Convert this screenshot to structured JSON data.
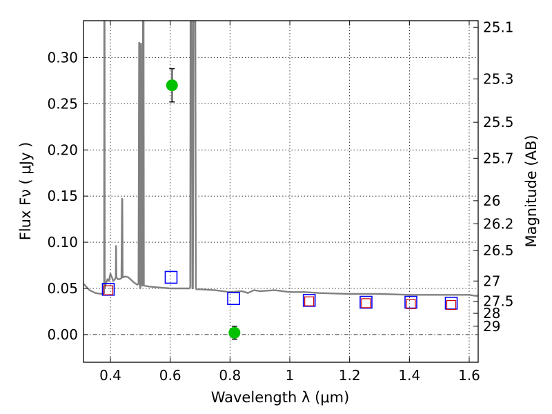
{
  "chart_data": {
    "type": "scatter",
    "title": "",
    "xlabel": "Wavelength  λ (μm)",
    "ylabel": "Flux  Fν  ( μJy )",
    "ylabel_right": "Magnitude (AB)",
    "xlim": [
      0.31,
      1.63
    ],
    "ylim": [
      -0.03,
      0.34
    ],
    "grid": true,
    "x_ticks": [
      {
        "value": 0.4,
        "label": "0.4"
      },
      {
        "value": 0.6,
        "label": "0.6"
      },
      {
        "value": 0.8,
        "label": "0.8"
      },
      {
        "value": 1.0,
        "label": "1"
      },
      {
        "value": 1.2,
        "label": "1.2"
      },
      {
        "value": 1.4,
        "label": "1.4"
      },
      {
        "value": 1.6,
        "label": "1.6"
      }
    ],
    "y_ticks": [
      {
        "value": 0.0,
        "label": "0.00"
      },
      {
        "value": 0.05,
        "label": "0.05"
      },
      {
        "value": 0.1,
        "label": "0.10"
      },
      {
        "value": 0.15,
        "label": "0.15"
      },
      {
        "value": 0.2,
        "label": "0.20"
      },
      {
        "value": 0.25,
        "label": "0.25"
      },
      {
        "value": 0.3,
        "label": "0.30"
      }
    ],
    "magnitude_ticks": [
      {
        "flux": 0.333,
        "label": "25.1"
      },
      {
        "flux": 0.277,
        "label": "25.3"
      },
      {
        "flux": 0.23,
        "label": "25.5"
      },
      {
        "flux": 0.191,
        "label": "25.7"
      },
      {
        "flux": 0.145,
        "label": "26"
      },
      {
        "flux": 0.12,
        "label": "26.2"
      },
      {
        "flux": 0.091,
        "label": "26.5"
      },
      {
        "flux": 0.058,
        "label": "27"
      },
      {
        "flux": 0.036,
        "label": "27.5"
      },
      {
        "flux": 0.023,
        "label": "28"
      },
      {
        "flux": 0.009,
        "label": "29"
      }
    ],
    "series": [
      {
        "name": "model spectrum",
        "kind": "line",
        "color": "#808080",
        "x": [
          0.31,
          0.33,
          0.35,
          0.37,
          0.379,
          0.3795,
          0.38,
          0.3805,
          0.381,
          0.385,
          0.39,
          0.395,
          0.4,
          0.405,
          0.41,
          0.415,
          0.418,
          0.419,
          0.42,
          0.425,
          0.43,
          0.437,
          0.439,
          0.44,
          0.441,
          0.443,
          0.45,
          0.46,
          0.47,
          0.48,
          0.49,
          0.494,
          0.496,
          0.497,
          0.498,
          0.5,
          0.501,
          0.502,
          0.503,
          0.505,
          0.507,
          0.508,
          0.509,
          0.51,
          0.511,
          0.512,
          0.53,
          0.56,
          0.6,
          0.64,
          0.66,
          0.665,
          0.667,
          0.668,
          0.67,
          0.672,
          0.674,
          0.676,
          0.678,
          0.68,
          0.682,
          0.684,
          0.686,
          0.688,
          0.7,
          0.75,
          0.8,
          0.84,
          0.86,
          0.88,
          0.9,
          0.95,
          1.0,
          1.05,
          1.1,
          1.2,
          1.3,
          1.4,
          1.5,
          1.58,
          1.6,
          1.62,
          1.63
        ],
        "y": [
          0.055,
          0.048,
          0.045,
          0.044,
          0.045,
          0.34,
          0.34,
          0.34,
          0.05,
          0.055,
          0.06,
          0.058,
          0.066,
          0.062,
          0.058,
          0.06,
          0.062,
          0.096,
          0.062,
          0.06,
          0.06,
          0.061,
          0.147,
          0.147,
          0.062,
          0.062,
          0.063,
          0.062,
          0.059,
          0.056,
          0.054,
          0.055,
          0.316,
          0.316,
          0.055,
          0.05,
          0.054,
          0.315,
          0.315,
          0.054,
          0.053,
          0.054,
          0.34,
          0.34,
          0.34,
          0.053,
          0.052,
          0.051,
          0.05,
          0.05,
          0.05,
          0.05,
          0.052,
          0.34,
          0.34,
          0.34,
          0.05,
          0.05,
          0.34,
          0.34,
          0.34,
          0.34,
          0.05,
          0.049,
          0.049,
          0.048,
          0.046,
          0.047,
          0.045,
          0.048,
          0.047,
          0.048,
          0.046,
          0.046,
          0.045,
          0.044,
          0.044,
          0.043,
          0.043,
          0.043,
          0.043,
          0.042,
          0.042
        ]
      },
      {
        "name": "observed photometry (blue squares)",
        "kind": "square-marker",
        "color": "#0000ff",
        "x": [
          0.393,
          0.603,
          0.812,
          1.065,
          1.255,
          1.405,
          1.54
        ],
        "y": [
          0.049,
          0.062,
          0.039,
          0.037,
          0.035,
          0.035,
          0.034
        ]
      },
      {
        "name": "model photometry (red squares)",
        "kind": "square-marker",
        "color": "#cc0000",
        "x": [
          0.393,
          1.065,
          1.255,
          1.405,
          1.54
        ],
        "y": [
          0.048,
          0.036,
          0.034,
          0.033,
          0.032
        ]
      },
      {
        "name": "detections (green circles)",
        "kind": "circle-marker",
        "color": "#00c000",
        "x": [
          0.606,
          0.815
        ],
        "y": [
          0.27,
          0.002
        ],
        "err": [
          0.018,
          0.007
        ]
      }
    ]
  }
}
